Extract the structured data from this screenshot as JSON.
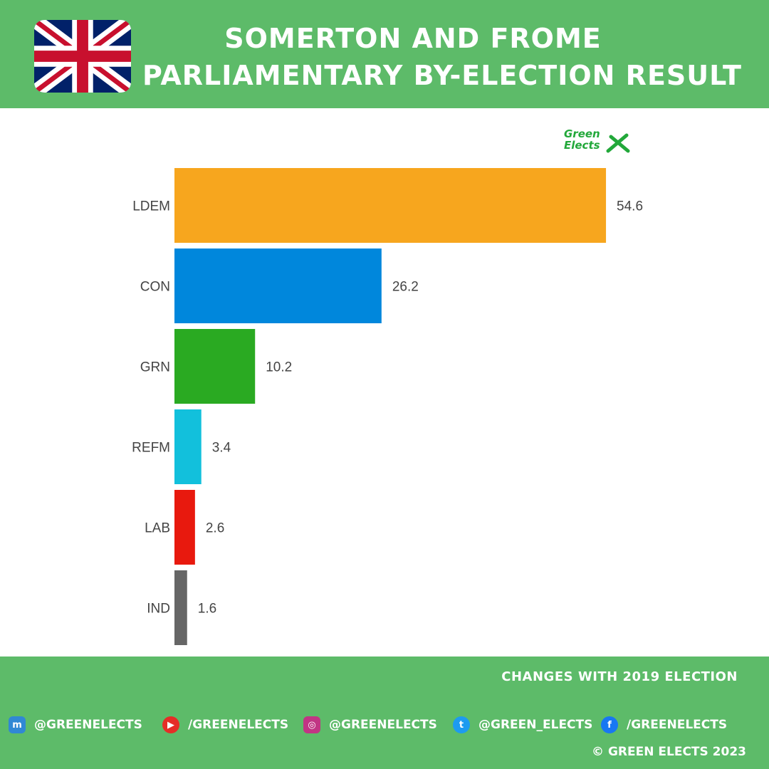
{
  "header": {
    "title_line1": "SOMERTON AND FROME",
    "title_line2": "PARLIAMENTARY BY-ELECTION RESULT",
    "flag_icon": "uk-flag-icon"
  },
  "logo": {
    "line1": "Green",
    "line2": "Elects",
    "color": "#22a83a"
  },
  "chart_data": {
    "type": "bar",
    "orientation": "horizontal",
    "categories": [
      "LDEM",
      "CON",
      "GRN",
      "REFM",
      "LAB",
      "IND"
    ],
    "values": [
      54.6,
      26.2,
      10.2,
      3.4,
      2.6,
      1.6
    ],
    "colors": [
      "#f7a61e",
      "#0087dc",
      "#2aaa22",
      "#12c0dc",
      "#e8190e",
      "#666666"
    ],
    "xlim": [
      0,
      60
    ],
    "grid": false
  },
  "footer": {
    "changes_label": "CHANGES WITH 2019 ELECTION",
    "socials": [
      {
        "icon": "mastodon-icon",
        "label": "@GREENELECTS"
      },
      {
        "icon": "youtube-icon",
        "label": "/GREENELECTS"
      },
      {
        "icon": "instagram-icon",
        "label": "@GREENELECTS"
      },
      {
        "icon": "twitter-icon",
        "label": "@GREEN_ELECTS"
      },
      {
        "icon": "facebook-icon",
        "label": "/GREENELECTS"
      }
    ],
    "copyright": "© GREEN ELECTS 2023"
  },
  "colors": {
    "header_bg": "#5dbb69",
    "footer_bg": "#5dbb69"
  }
}
